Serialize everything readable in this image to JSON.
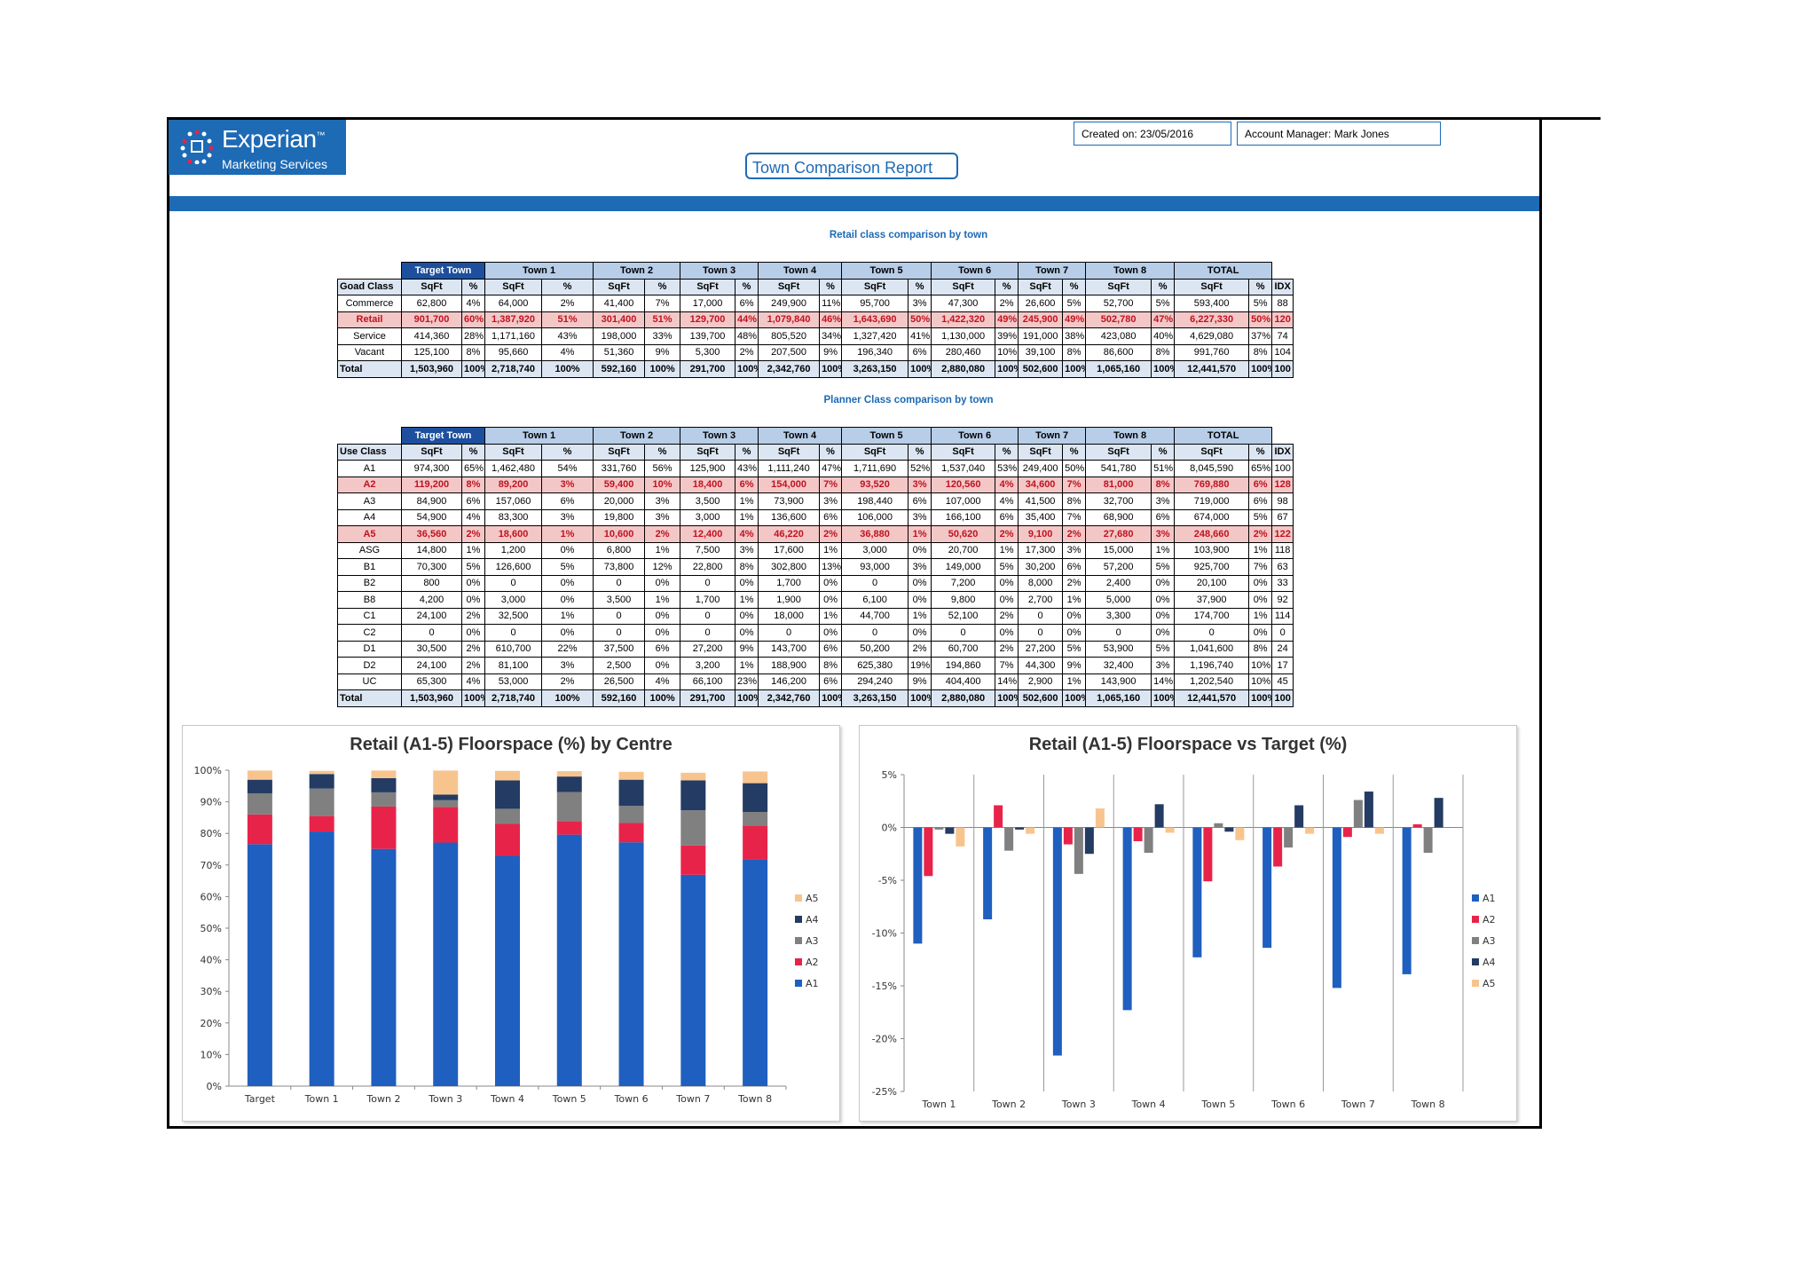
{
  "header": {
    "brand": "Experian",
    "tm": "™",
    "sub_brand": "Marketing Services",
    "report_title": "Town Comparison Report",
    "created_on": "Created on: 23/05/2016",
    "account_manager": "Account Manager: Mark Jones"
  },
  "colors": {
    "brand_blue": "#1d6ab5",
    "highlight_red": "#c0121f",
    "header_fill": "#b7cde8"
  },
  "towns": [
    "Target Town",
    "Town 1",
    "Town 2",
    "Town 3",
    "Town 4",
    "Town 5",
    "Town 6",
    "Town 7",
    "Town 8",
    "TOTAL"
  ],
  "subcols": {
    "sqft": "SqFt",
    "pct": "%",
    "idx": "IDX"
  },
  "goad_table": {
    "title": "Retail class comparison by town",
    "row_header": "Goad Class",
    "rows": [
      {
        "label": "Commerce",
        "cells": [
          "62,800",
          "4%",
          "64,000",
          "2%",
          "41,400",
          "7%",
          "17,000",
          "6%",
          "249,900",
          "11%",
          "95,700",
          "3%",
          "47,300",
          "2%",
          "26,600",
          "5%",
          "52,700",
          "5%",
          "593,400",
          "5%",
          "88"
        ],
        "highlight": false
      },
      {
        "label": "Retail",
        "cells": [
          "901,700",
          "60%",
          "1,387,920",
          "51%",
          "301,400",
          "51%",
          "129,700",
          "44%",
          "1,079,840",
          "46%",
          "1,643,690",
          "50%",
          "1,422,320",
          "49%",
          "245,900",
          "49%",
          "502,780",
          "47%",
          "6,227,330",
          "50%",
          "120"
        ],
        "highlight": true
      },
      {
        "label": "Service",
        "cells": [
          "414,360",
          "28%",
          "1,171,160",
          "43%",
          "198,000",
          "33%",
          "139,700",
          "48%",
          "805,520",
          "34%",
          "1,327,420",
          "41%",
          "1,130,000",
          "39%",
          "191,000",
          "38%",
          "423,080",
          "40%",
          "4,629,080",
          "37%",
          "74"
        ],
        "highlight": false
      },
      {
        "label": "Vacant",
        "cells": [
          "125,100",
          "8%",
          "95,660",
          "4%",
          "51,360",
          "9%",
          "5,300",
          "2%",
          "207,500",
          "9%",
          "196,340",
          "6%",
          "280,460",
          "10%",
          "39,100",
          "8%",
          "86,600",
          "8%",
          "991,760",
          "8%",
          "104"
        ],
        "highlight": false
      }
    ],
    "total": {
      "label": "Total",
      "cells": [
        "1,503,960",
        "100%",
        "2,718,740",
        "100%",
        "592,160",
        "100%",
        "291,700",
        "100%",
        "2,342,760",
        "100%",
        "3,263,150",
        "100%",
        "2,880,080",
        "100%",
        "502,600",
        "100%",
        "1,065,160",
        "100%",
        "12,441,570",
        "100%",
        "100"
      ]
    }
  },
  "planner_table": {
    "title": "Planner Class comparison by town",
    "row_header": "Use Class",
    "rows": [
      {
        "label": "A1",
        "cells": [
          "974,300",
          "65%",
          "1,462,480",
          "54%",
          "331,760",
          "56%",
          "125,900",
          "43%",
          "1,111,240",
          "47%",
          "1,711,690",
          "52%",
          "1,537,040",
          "53%",
          "249,400",
          "50%",
          "541,780",
          "51%",
          "8,045,590",
          "65%",
          "100"
        ],
        "highlight": false
      },
      {
        "label": "A2",
        "cells": [
          "119,200",
          "8%",
          "89,200",
          "3%",
          "59,400",
          "10%",
          "18,400",
          "6%",
          "154,000",
          "7%",
          "93,520",
          "3%",
          "120,560",
          "4%",
          "34,600",
          "7%",
          "81,000",
          "8%",
          "769,880",
          "6%",
          "128"
        ],
        "highlight": true
      },
      {
        "label": "A3",
        "cells": [
          "84,900",
          "6%",
          "157,060",
          "6%",
          "20,000",
          "3%",
          "3,500",
          "1%",
          "73,900",
          "3%",
          "198,440",
          "6%",
          "107,000",
          "4%",
          "41,500",
          "8%",
          "32,700",
          "3%",
          "719,000",
          "6%",
          "98"
        ],
        "highlight": false
      },
      {
        "label": "A4",
        "cells": [
          "54,900",
          "4%",
          "83,300",
          "3%",
          "19,800",
          "3%",
          "3,000",
          "1%",
          "136,600",
          "6%",
          "106,000",
          "3%",
          "166,100",
          "6%",
          "35,400",
          "7%",
          "68,900",
          "6%",
          "674,000",
          "5%",
          "67"
        ],
        "highlight": false
      },
      {
        "label": "A5",
        "cells": [
          "36,560",
          "2%",
          "18,600",
          "1%",
          "10,600",
          "2%",
          "12,400",
          "4%",
          "46,220",
          "2%",
          "36,880",
          "1%",
          "50,620",
          "2%",
          "9,100",
          "2%",
          "27,680",
          "3%",
          "248,660",
          "2%",
          "122"
        ],
        "highlight": true
      },
      {
        "label": "ASG",
        "cells": [
          "14,800",
          "1%",
          "1,200",
          "0%",
          "6,800",
          "1%",
          "7,500",
          "3%",
          "17,600",
          "1%",
          "3,000",
          "0%",
          "20,700",
          "1%",
          "17,300",
          "3%",
          "15,000",
          "1%",
          "103,900",
          "1%",
          "118"
        ],
        "highlight": false
      },
      {
        "label": "B1",
        "cells": [
          "70,300",
          "5%",
          "126,600",
          "5%",
          "73,800",
          "12%",
          "22,800",
          "8%",
          "302,800",
          "13%",
          "93,000",
          "3%",
          "149,000",
          "5%",
          "30,200",
          "6%",
          "57,200",
          "5%",
          "925,700",
          "7%",
          "63"
        ],
        "highlight": false
      },
      {
        "label": "B2",
        "cells": [
          "800",
          "0%",
          "0",
          "0%",
          "0",
          "0%",
          "0",
          "0%",
          "1,700",
          "0%",
          "0",
          "0%",
          "7,200",
          "0%",
          "8,000",
          "2%",
          "2,400",
          "0%",
          "20,100",
          "0%",
          "33"
        ],
        "highlight": false
      },
      {
        "label": "B8",
        "cells": [
          "4,200",
          "0%",
          "3,000",
          "0%",
          "3,500",
          "1%",
          "1,700",
          "1%",
          "1,900",
          "0%",
          "6,100",
          "0%",
          "9,800",
          "0%",
          "2,700",
          "1%",
          "5,000",
          "0%",
          "37,900",
          "0%",
          "92"
        ],
        "highlight": false
      },
      {
        "label": "C1",
        "cells": [
          "24,100",
          "2%",
          "32,500",
          "1%",
          "0",
          "0%",
          "0",
          "0%",
          "18,000",
          "1%",
          "44,700",
          "1%",
          "52,100",
          "2%",
          "0",
          "0%",
          "3,300",
          "0%",
          "174,700",
          "1%",
          "114"
        ],
        "highlight": false
      },
      {
        "label": "C2",
        "cells": [
          "0",
          "0%",
          "0",
          "0%",
          "0",
          "0%",
          "0",
          "0%",
          "0",
          "0%",
          "0",
          "0%",
          "0",
          "0%",
          "0",
          "0%",
          "0",
          "0%",
          "0",
          "0%",
          "0"
        ],
        "highlight": false
      },
      {
        "label": "D1",
        "cells": [
          "30,500",
          "2%",
          "610,700",
          "22%",
          "37,500",
          "6%",
          "27,200",
          "9%",
          "143,700",
          "6%",
          "50,200",
          "2%",
          "60,700",
          "2%",
          "27,200",
          "5%",
          "53,900",
          "5%",
          "1,041,600",
          "8%",
          "24"
        ],
        "highlight": false
      },
      {
        "label": "D2",
        "cells": [
          "24,100",
          "2%",
          "81,100",
          "3%",
          "2,500",
          "0%",
          "3,200",
          "1%",
          "188,900",
          "8%",
          "625,380",
          "19%",
          "194,860",
          "7%",
          "44,300",
          "9%",
          "32,400",
          "3%",
          "1,196,740",
          "10%",
          "17"
        ],
        "highlight": false
      },
      {
        "label": "UC",
        "cells": [
          "65,300",
          "4%",
          "53,000",
          "2%",
          "26,500",
          "4%",
          "66,100",
          "23%",
          "146,200",
          "6%",
          "294,240",
          "9%",
          "404,400",
          "14%",
          "2,900",
          "1%",
          "143,900",
          "14%",
          "1,202,540",
          "10%",
          "45"
        ],
        "highlight": false
      }
    ],
    "total": {
      "label": "Total",
      "cells": [
        "1,503,960",
        "100%",
        "2,718,740",
        "100%",
        "592,160",
        "100%",
        "291,700",
        "100%",
        "2,342,760",
        "100%",
        "3,263,150",
        "100%",
        "2,880,080",
        "100%",
        "502,600",
        "100%",
        "1,065,160",
        "100%",
        "12,441,570",
        "100%",
        "100"
      ]
    }
  },
  "chart_data": [
    {
      "type": "bar",
      "stacked": true,
      "title": "Retail (A1-5) Floorspace (%) by Centre",
      "categories": [
        "Target",
        "Town 1",
        "Town 2",
        "Town 3",
        "Town 4",
        "Town 5",
        "Town 6",
        "Town 7",
        "Town 8"
      ],
      "series": [
        {
          "name": "A1",
          "color": "#1f5fbf",
          "values": [
            76.6,
            80.6,
            75.1,
            77.1,
            72.9,
            79.6,
            77.2,
            66.9,
            71.8
          ]
        },
        {
          "name": "A2",
          "color": "#e8234a",
          "values": [
            9.4,
            4.9,
            13.4,
            11.3,
            10.1,
            4.3,
            6.1,
            9.3,
            10.7
          ]
        },
        {
          "name": "A3",
          "color": "#808080",
          "values": [
            6.7,
            8.7,
            4.5,
            2.1,
            4.8,
            9.2,
            5.4,
            11.1,
            4.3
          ]
        },
        {
          "name": "A4",
          "color": "#243b63",
          "values": [
            4.3,
            4.6,
            4.5,
            1.8,
            9.0,
            4.9,
            8.3,
            9.5,
            9.1
          ]
        },
        {
          "name": "A5",
          "color": "#f8c48e",
          "values": [
            2.9,
            1.0,
            2.4,
            7.6,
            3.0,
            1.7,
            2.5,
            2.4,
            3.7
          ]
        }
      ],
      "ytick_labels": [
        "0%",
        "10%",
        "20%",
        "30%",
        "40%",
        "50%",
        "60%",
        "70%",
        "80%",
        "90%",
        "100%"
      ],
      "ylim": [
        0,
        100
      ],
      "legend": "right"
    },
    {
      "type": "bar",
      "title": "Retail (A1-5) Floorspace vs Target (%)",
      "categories": [
        "Town 1",
        "Town 2",
        "Town 3",
        "Town 4",
        "Town 5",
        "Town 6",
        "Town 7",
        "Town 8"
      ],
      "series": [
        {
          "name": "A1",
          "color": "#1f5fbf",
          "values": [
            -11,
            -8.7,
            -21.6,
            -17.3,
            -12.3,
            -11.4,
            -15.2,
            -13.9
          ]
        },
        {
          "name": "A2",
          "color": "#e8234a",
          "values": [
            -4.6,
            2.1,
            -1.6,
            -1.3,
            -5.1,
            -3.7,
            -0.9,
            0.3
          ]
        },
        {
          "name": "A3",
          "color": "#808080",
          "values": [
            -0.2,
            -2.2,
            -4.4,
            -2.4,
            0.4,
            -1.9,
            2.6,
            -2.4
          ]
        },
        {
          "name": "A4",
          "color": "#243b63",
          "values": [
            -0.6,
            -0.2,
            -2.5,
            2.2,
            -0.4,
            2.1,
            3.4,
            2.8
          ]
        },
        {
          "name": "A5",
          "color": "#f8c48e",
          "values": [
            -1.8,
            -0.6,
            1.8,
            -0.5,
            -1.2,
            -0.6,
            -0.6,
            0.0
          ]
        }
      ],
      "ytick_labels": [
        "5%",
        "0%",
        "-5%",
        "-10%",
        "-15%",
        "-20%",
        "-25%"
      ],
      "ylim": [
        -25,
        5
      ],
      "legend": "right"
    }
  ]
}
